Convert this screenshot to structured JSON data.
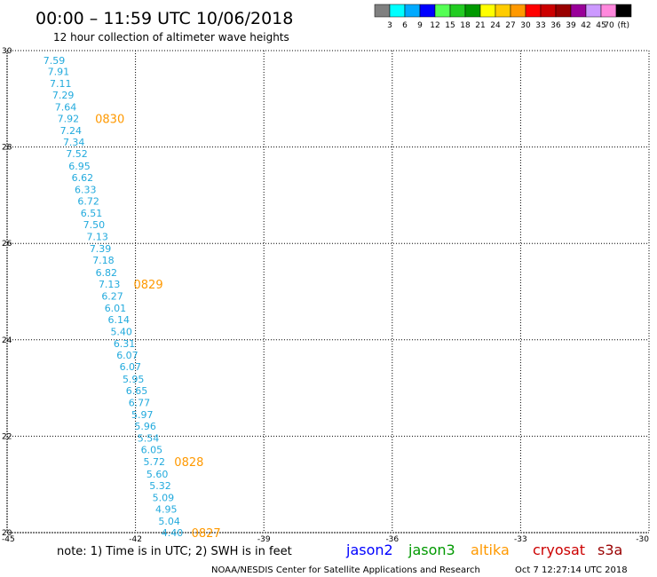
{
  "header": {
    "title": "00:00 – 11:59 UTC 10/06/2018",
    "subtitle": "12 hour collection of altimeter wave heights"
  },
  "color_scale": {
    "labels": [
      "3",
      "6",
      "9",
      "12",
      "15",
      "18",
      "21",
      "24",
      "27",
      "30",
      "33",
      "36",
      "39",
      "42",
      "45",
      "70"
    ],
    "unit": "(ft)",
    "colors": [
      "#808080",
      "#00ffff",
      "#00aaff",
      "#0000ff",
      "#55ff55",
      "#22cc22",
      "#009900",
      "#ffff00",
      "#ffcc00",
      "#ff9900",
      "#ff0000",
      "#cc0000",
      "#990000",
      "#990099",
      "#cc99ff",
      "#ff88dd",
      "#000000"
    ]
  },
  "map": {
    "lon_range": [
      -45,
      -30
    ],
    "lat_range": [
      20,
      30
    ],
    "lon_ticks": [
      "-45",
      "-42",
      "-39",
      "-36",
      "-33",
      "-30"
    ],
    "lat_ticks": [
      "30",
      "28",
      "26",
      "24",
      "22",
      "20"
    ],
    "tick_lon_values": [
      -45,
      -42,
      -39,
      -36,
      -33,
      -30
    ],
    "tick_lat_values": [
      30,
      28,
      26,
      24,
      22,
      20
    ],
    "track_color": "#22aadd",
    "time_label_color": "#ff9900",
    "track": [
      {
        "lon": -43.9,
        "lat": 29.8,
        "value": "7.59"
      },
      {
        "lon": -43.8,
        "lat": 29.57,
        "value": "7.91"
      },
      {
        "lon": -43.75,
        "lat": 29.32,
        "value": "7.11"
      },
      {
        "lon": -43.69,
        "lat": 29.08,
        "value": "7.29"
      },
      {
        "lon": -43.63,
        "lat": 28.83,
        "value": "7.64"
      },
      {
        "lon": -43.57,
        "lat": 28.59,
        "value": "7.92"
      },
      {
        "lon": -43.51,
        "lat": 28.34,
        "value": "7.24"
      },
      {
        "lon": -43.44,
        "lat": 28.1,
        "value": "7.34"
      },
      {
        "lon": -43.37,
        "lat": 27.86,
        "value": "7.52"
      },
      {
        "lon": -43.31,
        "lat": 27.61,
        "value": "6.95"
      },
      {
        "lon": -43.24,
        "lat": 27.37,
        "value": "6.62"
      },
      {
        "lon": -43.17,
        "lat": 27.12,
        "value": "6.33"
      },
      {
        "lon": -43.1,
        "lat": 26.88,
        "value": "6.72"
      },
      {
        "lon": -43.03,
        "lat": 26.63,
        "value": "6.51"
      },
      {
        "lon": -42.97,
        "lat": 26.39,
        "value": "7.50"
      },
      {
        "lon": -42.89,
        "lat": 26.14,
        "value": "7.13"
      },
      {
        "lon": -42.82,
        "lat": 25.89,
        "value": "7.39"
      },
      {
        "lon": -42.75,
        "lat": 25.65,
        "value": "7.18"
      },
      {
        "lon": -42.68,
        "lat": 25.4,
        "value": "6.82"
      },
      {
        "lon": -42.61,
        "lat": 25.16,
        "value": "7.13"
      },
      {
        "lon": -42.54,
        "lat": 24.91,
        "value": "6.27"
      },
      {
        "lon": -42.47,
        "lat": 24.66,
        "value": "6.01"
      },
      {
        "lon": -42.39,
        "lat": 24.42,
        "value": "6.14"
      },
      {
        "lon": -42.33,
        "lat": 24.17,
        "value": "5.40"
      },
      {
        "lon": -42.26,
        "lat": 23.92,
        "value": "6.31"
      },
      {
        "lon": -42.19,
        "lat": 23.68,
        "value": "6.07"
      },
      {
        "lon": -42.12,
        "lat": 23.44,
        "value": "6.07"
      },
      {
        "lon": -42.05,
        "lat": 23.19,
        "value": "5.95"
      },
      {
        "lon": -41.97,
        "lat": 22.95,
        "value": "6.65"
      },
      {
        "lon": -41.91,
        "lat": 22.7,
        "value": "6.77"
      },
      {
        "lon": -41.84,
        "lat": 22.45,
        "value": "5.97"
      },
      {
        "lon": -41.77,
        "lat": 22.21,
        "value": "5.96"
      },
      {
        "lon": -41.7,
        "lat": 21.96,
        "value": "5.54"
      },
      {
        "lon": -41.62,
        "lat": 21.72,
        "value": "6.05"
      },
      {
        "lon": -41.56,
        "lat": 21.47,
        "value": "5.72"
      },
      {
        "lon": -41.49,
        "lat": 21.22,
        "value": "5.60"
      },
      {
        "lon": -41.42,
        "lat": 20.98,
        "value": "5.32"
      },
      {
        "lon": -41.35,
        "lat": 20.73,
        "value": "5.09"
      },
      {
        "lon": -41.28,
        "lat": 20.49,
        "value": "4.95"
      },
      {
        "lon": -41.21,
        "lat": 20.24,
        "value": "5.04"
      },
      {
        "lon": -41.14,
        "lat": 20.0,
        "value": "4.40"
      }
    ],
    "time_labels": [
      {
        "lon": -42.6,
        "lat": 28.59,
        "value": "0830"
      },
      {
        "lon": -41.7,
        "lat": 25.16,
        "value": "0829"
      },
      {
        "lon": -40.75,
        "lat": 21.47,
        "value": "0828"
      },
      {
        "lon": -40.35,
        "lat": 20.0,
        "value": "0827"
      }
    ]
  },
  "footer": {
    "note": "note: 1) Time is in UTC; 2) SWH is in feet",
    "satellites": [
      {
        "label": "jason2",
        "color": "#0000ff"
      },
      {
        "label": "jason3",
        "color": "#009900"
      },
      {
        "label": "altika",
        "color": "#ff9900"
      },
      {
        "label": "cryosat",
        "color": "#cc0000"
      },
      {
        "label": "s3a",
        "color": "#990000"
      }
    ],
    "credit": "NOAA/NESDIS Center for Satellite Applications and Research",
    "timestamp": "Oct  7 12:27:14 UTC 2018"
  }
}
